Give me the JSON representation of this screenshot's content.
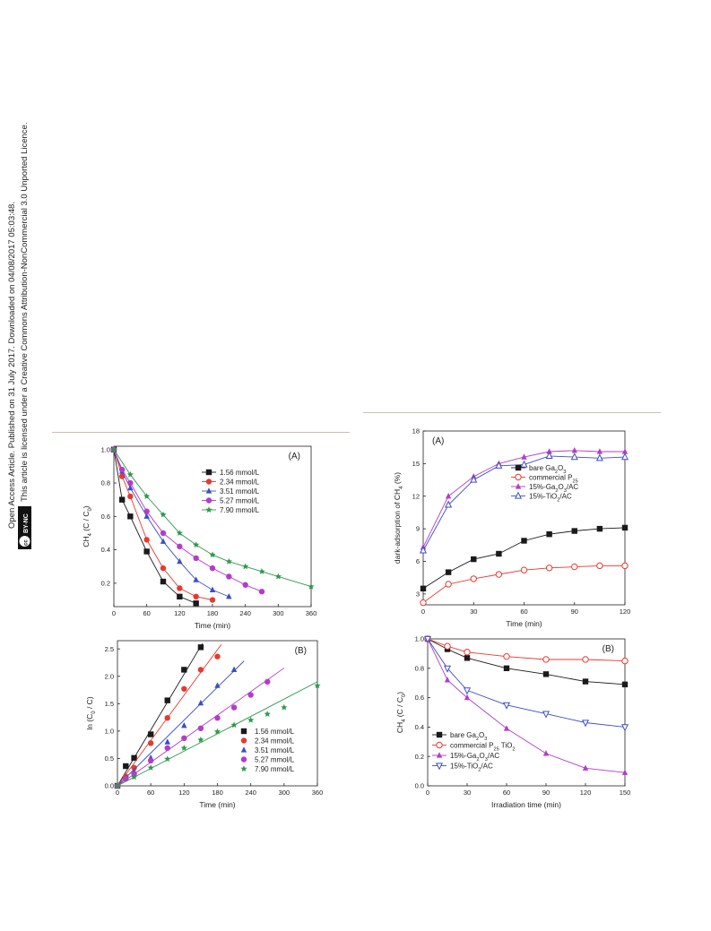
{
  "side_license": {
    "line1": "Open Access Article. Published on 31 July 2017. Downloaded on 04/08/2017 05:03:48.",
    "line2": "This article is licensed under a Creative Commons Attribution-NonCommercial 3.0 Unported Licence.",
    "badge_cc": "cc",
    "badge_text": "BY-NC"
  },
  "chart_data": [
    {
      "id": "A_left",
      "type": "line",
      "panel_label": "(A)",
      "xlabel": "Time (min)",
      "ylabel": "CH4 (C / C0)",
      "xlim": [
        0,
        360
      ],
      "ylim": [
        0.06,
        1.02
      ],
      "xticks": [
        "0",
        "60",
        "120",
        "180",
        "240",
        "300",
        "360"
      ],
      "yticks": [
        "0.2",
        "0.4",
        "0.6",
        "0.8",
        "1.0"
      ],
      "legend_position": "top-right",
      "series": [
        {
          "name": "1.56 mmol/L",
          "color": "#1a1a1a",
          "marker": "square",
          "x": [
            0,
            15,
            30,
            60,
            90,
            120,
            150
          ],
          "y": [
            1.0,
            0.7,
            0.6,
            0.39,
            0.21,
            0.12,
            0.08
          ]
        },
        {
          "name": "2.34 mmol/L",
          "color": "#e8392f",
          "marker": "circle",
          "x": [
            0,
            15,
            30,
            60,
            90,
            120,
            150,
            180
          ],
          "y": [
            1.0,
            0.84,
            0.72,
            0.46,
            0.29,
            0.17,
            0.12,
            0.1
          ]
        },
        {
          "name": "3.51 mmol/L",
          "color": "#3a4fc4",
          "marker": "triangle",
          "x": [
            0,
            15,
            30,
            60,
            90,
            120,
            150,
            180,
            210
          ],
          "y": [
            1.0,
            0.87,
            0.77,
            0.6,
            0.45,
            0.33,
            0.22,
            0.16,
            0.12
          ]
        },
        {
          "name": "5.27 mmol/L",
          "color": "#b33cc9",
          "marker": "circle",
          "x": [
            0,
            15,
            30,
            60,
            90,
            120,
            150,
            180,
            210,
            240,
            270
          ],
          "y": [
            1.0,
            0.88,
            0.8,
            0.63,
            0.5,
            0.42,
            0.35,
            0.29,
            0.24,
            0.19,
            0.15
          ]
        },
        {
          "name": "7.90 mmol/L",
          "color": "#2e9a4a",
          "marker": "star",
          "x": [
            0,
            30,
            60,
            90,
            120,
            150,
            180,
            210,
            240,
            270,
            300,
            360
          ],
          "y": [
            1.0,
            0.85,
            0.72,
            0.61,
            0.5,
            0.43,
            0.37,
            0.33,
            0.3,
            0.27,
            0.24,
            0.18
          ]
        }
      ]
    },
    {
      "id": "B_left",
      "type": "scatter",
      "panel_label": "(B)",
      "xlabel": "Time (min)",
      "ylabel": "ln (C0 / C)",
      "xlim": [
        0,
        360
      ],
      "ylim": [
        0,
        2.65
      ],
      "xticks": [
        "0",
        "60",
        "120",
        "180",
        "240",
        "300",
        "360"
      ],
      "yticks": [
        "0.0",
        "0.5",
        "1.0",
        "1.5",
        "2.0",
        "2.5"
      ],
      "legend_position": "bottom-right",
      "series": [
        {
          "name": "1.56 mmol/L",
          "color": "#1a1a1a",
          "marker": "square",
          "x": [
            0,
            15,
            30,
            60,
            90,
            120,
            150
          ],
          "y": [
            0,
            0.36,
            0.51,
            0.94,
            1.56,
            2.12,
            2.53
          ],
          "fit": [
            [
              0,
              0
            ],
            [
              153,
              2.6
            ]
          ]
        },
        {
          "name": "2.34 mmol/L",
          "color": "#e8392f",
          "marker": "circle",
          "x": [
            0,
            15,
            30,
            60,
            90,
            120,
            150,
            180
          ],
          "y": [
            0,
            0.17,
            0.33,
            0.78,
            1.24,
            1.77,
            2.12,
            2.36
          ],
          "fit": [
            [
              0,
              0
            ],
            [
              187,
              2.58
            ]
          ]
        },
        {
          "name": "3.51 mmol/L",
          "color": "#3a4fc4",
          "marker": "triangle",
          "x": [
            0,
            15,
            30,
            60,
            90,
            120,
            150,
            180,
            210
          ],
          "y": [
            0,
            0.14,
            0.26,
            0.51,
            0.8,
            1.1,
            1.51,
            1.83,
            2.12
          ],
          "fit": [
            [
              0,
              0
            ],
            [
              228,
              2.28
            ]
          ]
        },
        {
          "name": "5.27 mmol/L",
          "color": "#b33cc9",
          "marker": "circle",
          "x": [
            0,
            15,
            30,
            60,
            90,
            120,
            150,
            180,
            210,
            240,
            270
          ],
          "y": [
            0,
            0.13,
            0.22,
            0.46,
            0.69,
            0.87,
            1.05,
            1.24,
            1.43,
            1.66,
            1.9
          ],
          "fit": [
            [
              0,
              0
            ],
            [
              300,
              2.15
            ]
          ]
        },
        {
          "name": "7.90 mmol/L",
          "color": "#2e9a4a",
          "marker": "star",
          "x": [
            0,
            30,
            60,
            90,
            120,
            150,
            180,
            210,
            240,
            270,
            300,
            360
          ],
          "y": [
            0,
            0.16,
            0.33,
            0.49,
            0.69,
            0.84,
            0.99,
            1.11,
            1.2,
            1.31,
            1.43,
            1.83
          ],
          "fit": [
            [
              0,
              0
            ],
            [
              360,
              1.9
            ]
          ]
        }
      ]
    },
    {
      "id": "A_right",
      "type": "line",
      "panel_label": "(A)",
      "xlabel": "Time (min)",
      "ylabel": "dark-adsorption of CH4 (%)",
      "xlim": [
        0,
        120
      ],
      "ylim": [
        2,
        18
      ],
      "xticks": [
        "0",
        "30",
        "60",
        "90",
        "120"
      ],
      "yticks": [
        "3",
        "6",
        "9",
        "12",
        "15",
        "18"
      ],
      "legend_position": "middle-right",
      "series": [
        {
          "name": "bare Ga2O3",
          "color": "#1a1a1a",
          "marker": "square",
          "x": [
            0,
            15,
            30,
            45,
            60,
            75,
            90,
            105,
            120
          ],
          "y": [
            3.5,
            5.0,
            6.2,
            6.7,
            7.9,
            8.5,
            8.8,
            9.0,
            9.1
          ]
        },
        {
          "name": "commercial P25",
          "color": "#e8392f",
          "marker": "circle-open",
          "x": [
            0,
            15,
            30,
            45,
            60,
            75,
            90,
            105,
            120
          ],
          "y": [
            2.2,
            3.9,
            4.4,
            4.8,
            5.2,
            5.4,
            5.5,
            5.6,
            5.6
          ]
        },
        {
          "name": "15%-Ga2O3/AC",
          "color": "#b33cc9",
          "marker": "triangle",
          "x": [
            0,
            15,
            30,
            45,
            60,
            75,
            90,
            105,
            120
          ],
          "y": [
            7.3,
            12.0,
            13.8,
            15.0,
            15.6,
            16.1,
            16.2,
            16.1,
            16.1
          ]
        },
        {
          "name": "15%-TiO2/AC",
          "color": "#3a4fc4",
          "marker": "triangle-open",
          "x": [
            0,
            15,
            30,
            45,
            60,
            75,
            90,
            105,
            120
          ],
          "y": [
            7.0,
            11.2,
            13.5,
            14.8,
            14.9,
            15.7,
            15.6,
            15.5,
            15.6
          ]
        }
      ]
    },
    {
      "id": "B_right",
      "type": "line",
      "panel_label": "(B)",
      "xlabel": "Irradiation time (min)",
      "ylabel": "CH4 (C / C0)",
      "xlim": [
        0,
        150
      ],
      "ylim": [
        0,
        1.0
      ],
      "xticks": [
        "0",
        "30",
        "60",
        "90",
        "120",
        "150"
      ],
      "yticks": [
        "0.0",
        "0.2",
        "0.4",
        "0.6",
        "0.8",
        "1.0"
      ],
      "legend_position": "bottom-left",
      "series": [
        {
          "name": "bare Ga2O3",
          "color": "#1a1a1a",
          "marker": "square",
          "x": [
            0,
            15,
            30,
            60,
            90,
            120,
            150
          ],
          "y": [
            1.0,
            0.93,
            0.87,
            0.8,
            0.76,
            0.71,
            0.69
          ]
        },
        {
          "name": "commercial P25 TiO2",
          "color": "#e8392f",
          "marker": "circle-open",
          "x": [
            0,
            15,
            30,
            60,
            90,
            120,
            150
          ],
          "y": [
            1.0,
            0.95,
            0.91,
            0.88,
            0.86,
            0.86,
            0.85
          ]
        },
        {
          "name": "15%-Ga2O3/AC",
          "color": "#b33cc9",
          "marker": "triangle",
          "x": [
            0,
            15,
            30,
            60,
            90,
            120,
            150
          ],
          "y": [
            1.0,
            0.72,
            0.6,
            0.39,
            0.22,
            0.12,
            0.09
          ]
        },
        {
          "name": "15%-TiO2/AC",
          "color": "#3a4fc4",
          "marker": "triangle-down-open",
          "x": [
            0,
            15,
            30,
            60,
            90,
            120,
            150
          ],
          "y": [
            1.0,
            0.8,
            0.65,
            0.55,
            0.49,
            0.43,
            0.4
          ]
        }
      ]
    }
  ]
}
